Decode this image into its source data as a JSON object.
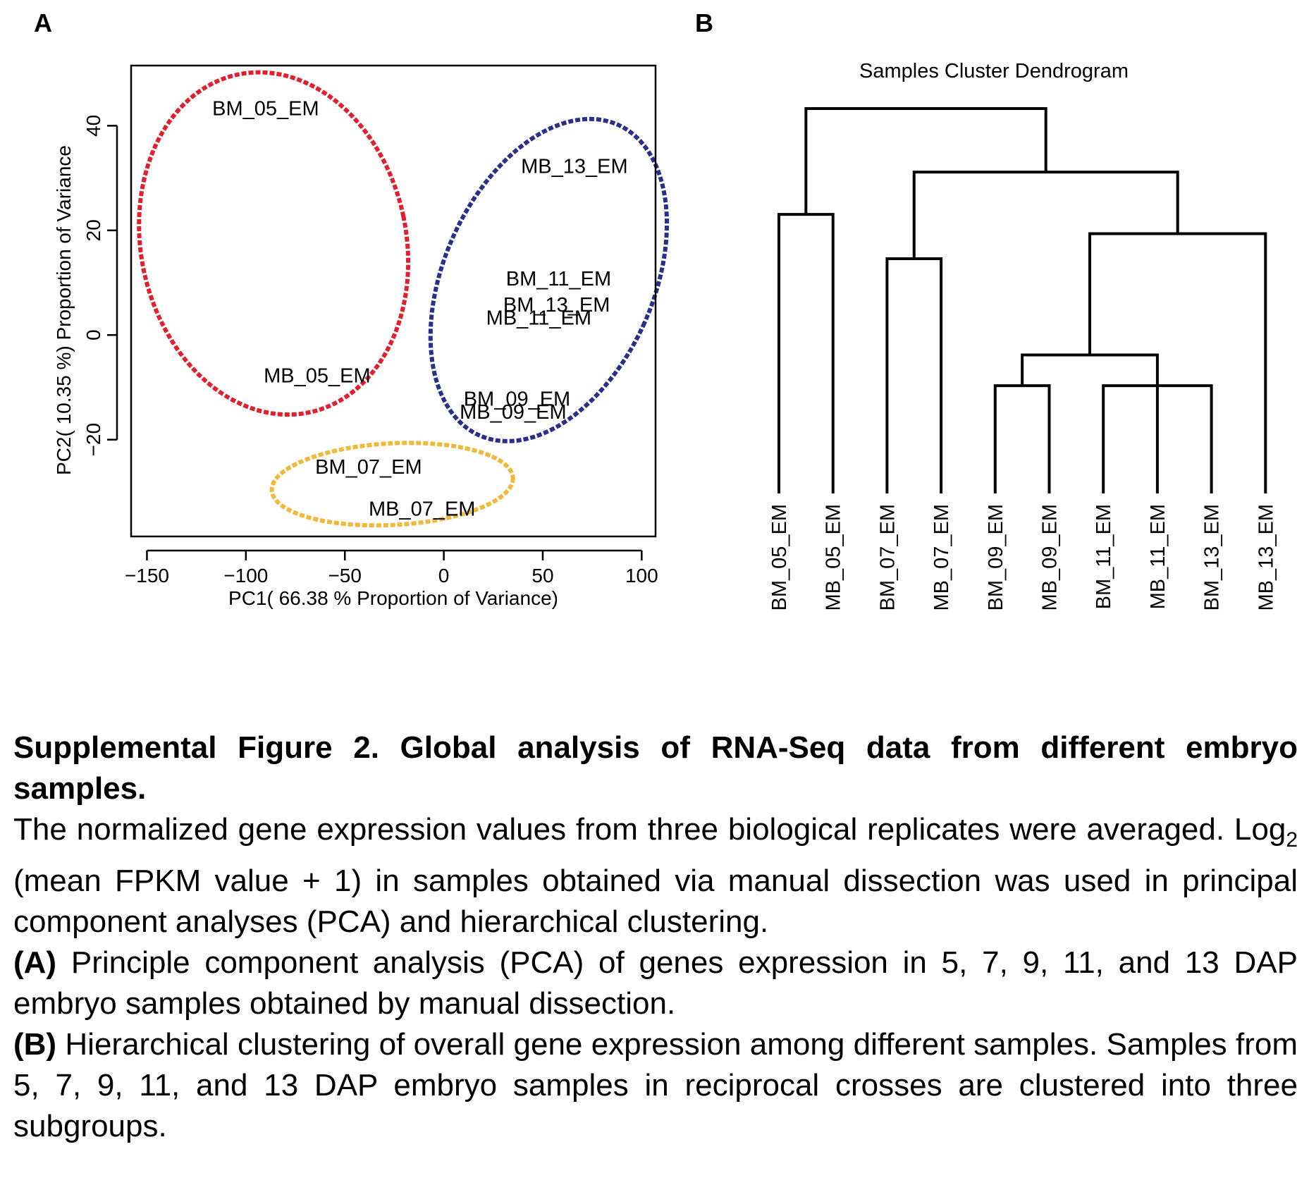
{
  "chart_data": [
    {
      "type": "scatter",
      "panel": "A",
      "xlabel": "PC1( 66.38 % Proportion of Variance)",
      "ylabel": "PC2( 10.35 %) Proportion of Variance",
      "xlim": [
        -158,
        107
      ],
      "ylim": [
        -38.5,
        51.5
      ],
      "xticks": [
        -150,
        -100,
        -50,
        0,
        50,
        100
      ],
      "xtick_labels": [
        "−150",
        "−100",
        "−50",
        "0",
        "50",
        "100"
      ],
      "yticks": [
        -20,
        0,
        20,
        40
      ],
      "ytick_labels": [
        "−20",
        "0",
        "20",
        "40"
      ],
      "points": [
        {
          "label": "BM_05_EM",
          "x": -90,
          "y": 43
        },
        {
          "label": "MB_05_EM",
          "x": -64,
          "y": -8
        },
        {
          "label": "MB_13_EM",
          "x": 66,
          "y": 32
        },
        {
          "label": "BM_11_EM",
          "x": 58,
          "y": 10.5
        },
        {
          "label": "BM_13_EM",
          "x": 57,
          "y": 5.5
        },
        {
          "label": "MB_11_EM",
          "x": 48,
          "y": 3
        },
        {
          "label": "BM_09_EM",
          "x": 37,
          "y": -12.5
        },
        {
          "label": "MB_09_EM",
          "x": 35,
          "y": -15
        },
        {
          "label": "BM_07_EM",
          "x": -38,
          "y": -25.5
        },
        {
          "label": "MB_07_EM",
          "x": -11,
          "y": -33.5
        }
      ],
      "groups": [
        {
          "color": "#e0202e",
          "cx": -86,
          "cy": 17.5,
          "rx": 67,
          "ry": 33,
          "rotation": -12
        },
        {
          "color": "#2b2f8c",
          "cx": 53,
          "cy": 10.5,
          "rx": 53,
          "ry": 32.5,
          "rotation": 24
        },
        {
          "color": "#f0b93a",
          "cx": -26,
          "cy": -28.5,
          "rx": 61,
          "ry": 7.8,
          "rotation": -3
        }
      ],
      "grid": false
    },
    {
      "type": "dendrogram",
      "panel": "B",
      "title": "Samples Cluster Dendrogram",
      "leaves": [
        "BM_05_EM",
        "MB_05_EM",
        "BM_07_EM",
        "MB_07_EM",
        "BM_09_EM",
        "MB_09_EM",
        "BM_11_EM",
        "MB_11_EM",
        "BM_13_EM",
        "MB_13_EM"
      ],
      "merges": [
        {
          "a": "L0",
          "b": "L1",
          "height": 0.725
        },
        {
          "a": "L2",
          "b": "L3",
          "height": 0.61
        },
        {
          "a": "L4",
          "b": "L5",
          "height": 0.28
        },
        {
          "a": "L6",
          "b": "L8",
          "height": 0.28
        },
        {
          "a": "N2",
          "b": "L7",
          "height": 0.36
        },
        {
          "a": "N4",
          "b": "L9",
          "height": 0.675
        },
        {
          "a": "N1",
          "b": "N5",
          "height": 0.835
        },
        {
          "a": "N0",
          "b": "N6",
          "height": 1.0
        }
      ]
    }
  ],
  "panel_a_letter": "A",
  "panel_b_letter": "B",
  "caption": {
    "title": "Supplemental Figure 2. Global analysis of RNA-Seq data from different embryo samples.",
    "para1_a": "The normalized gene expression values from three biological replicates were averaged. Log",
    "para1_sub": "2",
    "para1_b": " (mean FPKM value + 1) in samples obtained via manual dissection was used in principal component analyses (PCA) and hierarchical clustering.",
    "a_label": "(A)",
    "a_text": " Principle component analysis (PCA) of genes expression in 5, 7, 9, 11, and 13 DAP embryo samples obtained by manual dissection.",
    "b_label": "(B)",
    "b_text": " Hierarchical clustering of overall gene expression among different samples. Samples from 5, 7, 9, 11, and 13 DAP embryo samples in reciprocal crosses are clustered into three subgroups."
  }
}
